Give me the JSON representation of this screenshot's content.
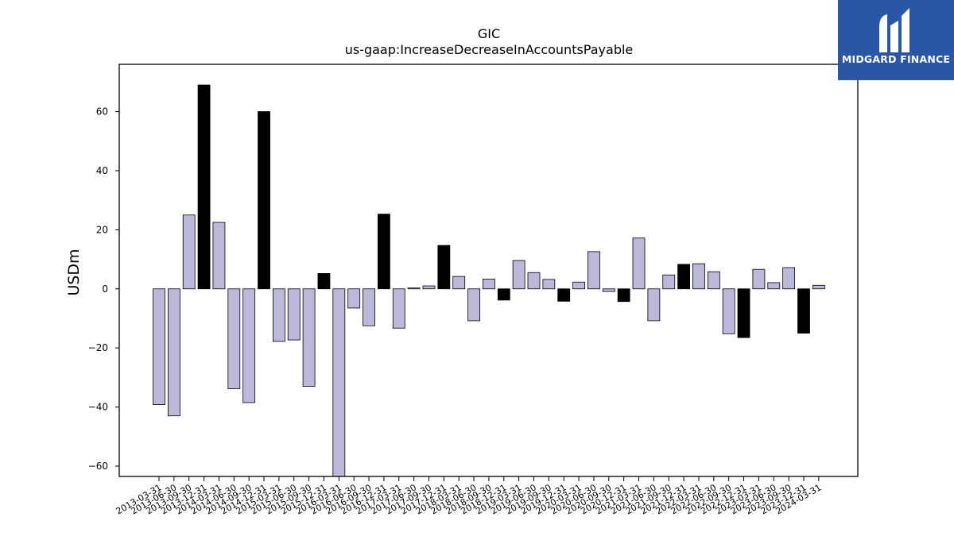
{
  "chart_data": {
    "type": "bar",
    "title": "GIC",
    "subtitle": "us-gaap:IncreaseDecreaseInAccountsPayable",
    "xlabel": "",
    "ylabel": "USDm",
    "ylim": [
      -63.5,
      76
    ],
    "yticks": [
      -60,
      -40,
      -20,
      0,
      20,
      40,
      60
    ],
    "ytick_labels": [
      "−60",
      "−40",
      "−20",
      "0",
      "20",
      "40",
      "60"
    ],
    "grid": false,
    "colors": {
      "regular": "#bcb8d9",
      "highlight": "#000000",
      "edge": "#000000"
    },
    "highlight_rule": "fourth-quarter (12-31) bars drawn in black",
    "categories": [
      "2013-03-31",
      "2013-06-30",
      "2013-09-30",
      "2013-12-31",
      "2014-03-31",
      "2014-06-30",
      "2014-09-30",
      "2014-12-31",
      "2015-03-31",
      "2015-06-30",
      "2015-09-30",
      "2015-12-31",
      "2016-03-31",
      "2016-06-30",
      "2016-09-30",
      "2016-12-31",
      "2017-03-31",
      "2017-06-30",
      "2017-09-30",
      "2017-12-31",
      "2018-03-31",
      "2018-06-30",
      "2018-09-30",
      "2018-12-31",
      "2019-03-31",
      "2019-06-30",
      "2019-09-30",
      "2019-12-31",
      "2020-03-31",
      "2020-06-30",
      "2020-09-30",
      "2020-12-31",
      "2021-03-31",
      "2021-06-30",
      "2021-09-30",
      "2021-12-31",
      "2022-03-31",
      "2022-06-30",
      "2022-09-30",
      "2022-12-31",
      "2023-03-31",
      "2023-06-30",
      "2023-09-30",
      "2023-12-31",
      "2024-03-31"
    ],
    "values": [
      -39.2,
      -43.0,
      25.0,
      69.0,
      22.5,
      -33.8,
      -38.5,
      60.0,
      -17.8,
      -17.3,
      -33.0,
      5.2,
      -64.0,
      -6.5,
      -12.5,
      25.3,
      -13.3,
      0.3,
      1.0,
      14.7,
      4.2,
      -10.8,
      3.3,
      -3.8,
      9.6,
      5.5,
      3.2,
      -4.2,
      2.3,
      12.6,
      -0.9,
      -4.3,
      17.2,
      -10.8,
      4.7,
      8.3,
      8.5,
      5.8,
      -15.2,
      -16.5,
      6.6,
      2.1,
      7.2,
      -15.0,
      1.2
    ],
    "highlight": [
      false,
      false,
      false,
      true,
      false,
      false,
      false,
      true,
      false,
      false,
      false,
      true,
      false,
      false,
      false,
      true,
      false,
      false,
      false,
      true,
      false,
      false,
      false,
      true,
      false,
      false,
      false,
      true,
      false,
      false,
      false,
      true,
      false,
      false,
      false,
      true,
      false,
      false,
      false,
      true,
      false,
      false,
      false,
      true,
      false
    ]
  },
  "logo": {
    "text": "MIDGARD FINANCE",
    "icon": "midgard-logo-icon"
  }
}
